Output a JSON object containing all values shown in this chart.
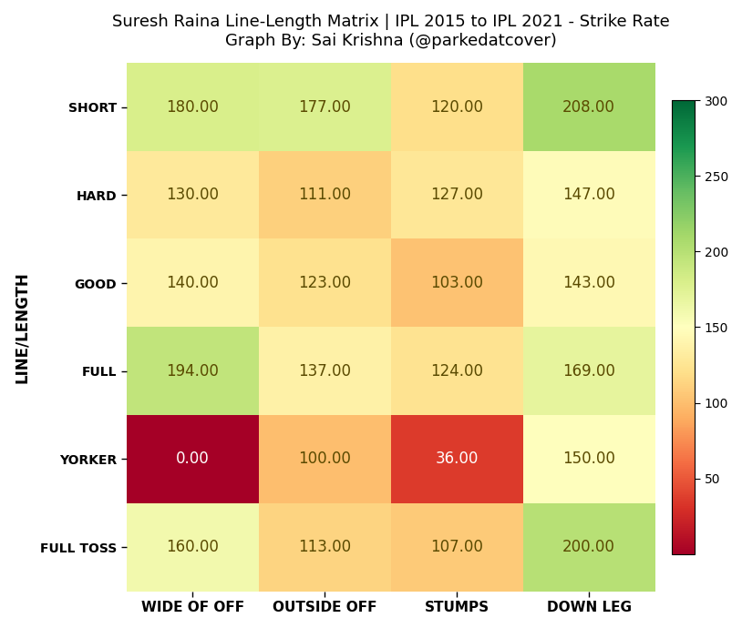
{
  "title": "Suresh Raina Line-Length Matrix | IPL 2015 to IPL 2021 - Strike Rate\nGraph By: Sai Krishna (@parkedatcover)",
  "title_fontsize": 13,
  "rows": [
    "SHORT",
    "HARD",
    "GOOD",
    "FULL",
    "YORKER",
    "FULL TOSS"
  ],
  "cols": [
    "WIDE OF OFF",
    "OUTSIDE OFF",
    "STUMPS",
    "DOWN LEG"
  ],
  "ylabel": "LINE/LENGTH",
  "values": [
    [
      180.0,
      177.0,
      120.0,
      208.0
    ],
    [
      130.0,
      111.0,
      127.0,
      147.0
    ],
    [
      140.0,
      123.0,
      103.0,
      143.0
    ],
    [
      194.0,
      137.0,
      124.0,
      169.0
    ],
    [
      0.0,
      100.0,
      36.0,
      150.0
    ],
    [
      160.0,
      113.0,
      107.0,
      200.0
    ]
  ],
  "vmin": 0,
  "vmax": 300,
  "colorbar_ticks": [
    50,
    100,
    150,
    200,
    250,
    300
  ],
  "annot_fontsize": 12,
  "background_color": "#ffffff",
  "cmap_name": "RdYlGn",
  "text_threshold_low": 0.2,
  "text_color_dark": "#5a4a00",
  "text_color_light": "#ffffff"
}
